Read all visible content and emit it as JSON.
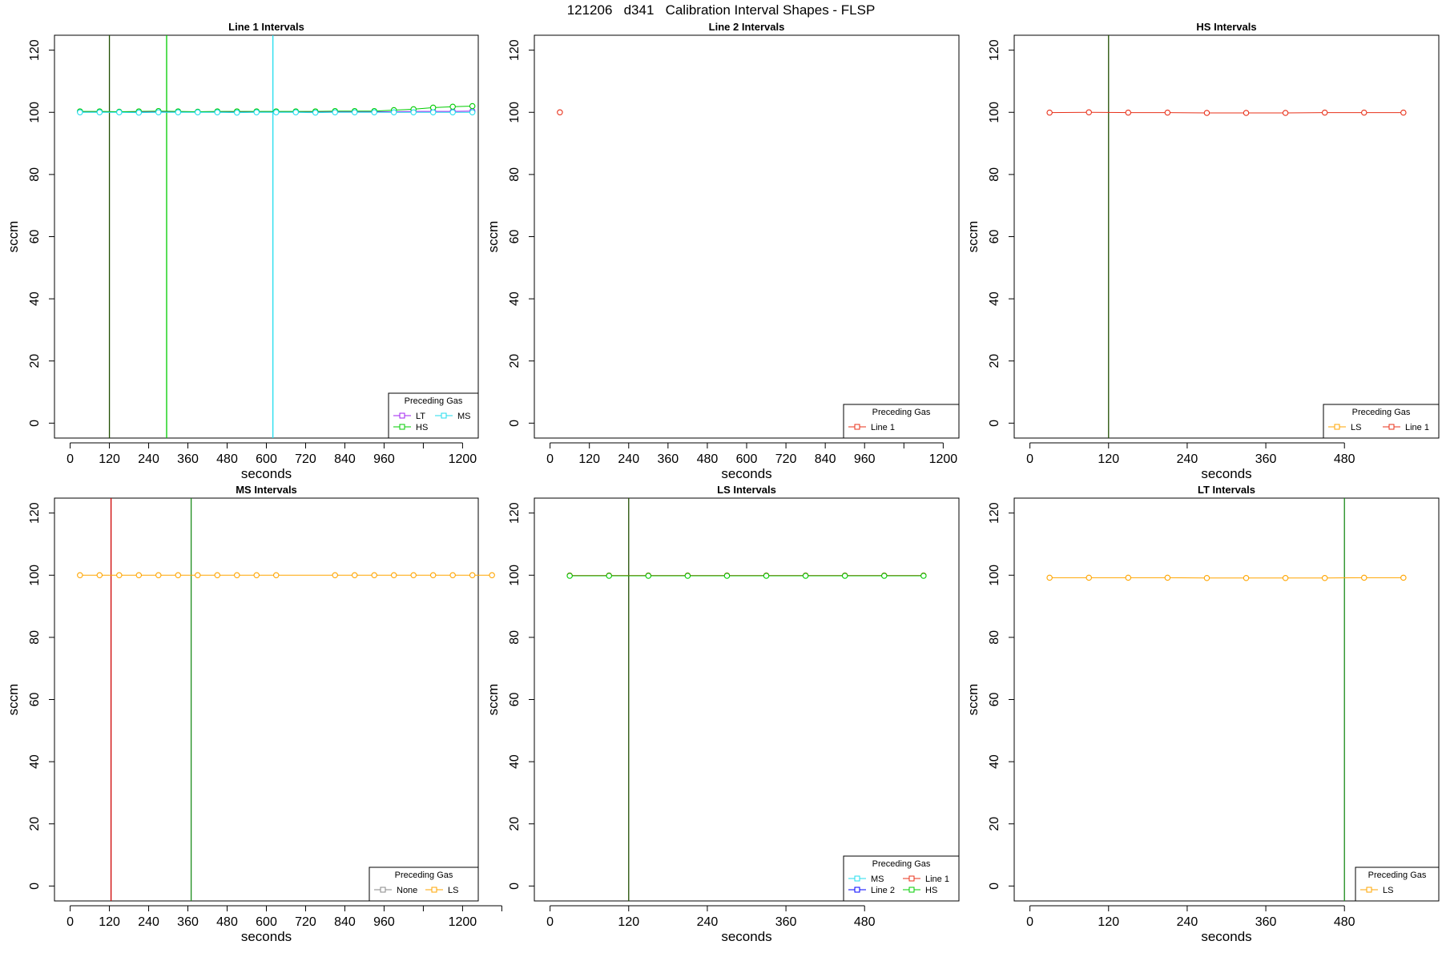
{
  "figure": {
    "title": "121206   d341   Calibration Interval Shapes - FLSP",
    "axis_color": "#000000"
  },
  "colors": {
    "LT": "#A020F0",
    "HS": "#00CC00",
    "MS": "#22DDEE",
    "Line 1": "#E8311A",
    "Line 2": "#0000FF",
    "LS": "#FFA500",
    "None": "#888888",
    "vline_dark": "#1F4D00",
    "vline_green": "#00CC00",
    "vline_cyan": "#22DDEE",
    "vline_red": "#CC0000",
    "vline_dkgreen": "#1A8A1A"
  },
  "chart_data": [
    {
      "type": "line",
      "title": "Line 1 Intervals",
      "xlabel": "seconds",
      "ylabel": "sccm",
      "xlim": [
        0,
        1200
      ],
      "ylim": [
        0,
        120
      ],
      "xticks": [
        0,
        120,
        240,
        360,
        480,
        600,
        720,
        840,
        960,
        1080,
        1200
      ],
      "xticklabels": [
        "0",
        "120",
        "240",
        "360",
        "480",
        "600",
        "720",
        "840",
        "960",
        "",
        "1200"
      ],
      "yticks": [
        0,
        20,
        40,
        60,
        80,
        100,
        120
      ],
      "legend": {
        "title": "Preceding Gas",
        "entries": [
          "LT",
          "MS",
          "HS"
        ],
        "position": "bottom-right"
      },
      "vlines": [
        {
          "x": 120,
          "color": "vline_dark"
        },
        {
          "x": 295,
          "color": "vline_green"
        },
        {
          "x": 620,
          "color": "vline_cyan"
        }
      ],
      "series": [
        {
          "name": "LT",
          "x": [
            30,
            90,
            150,
            210,
            270,
            330,
            390,
            450,
            510,
            570,
            630,
            690,
            750,
            810,
            870,
            930,
            990,
            1050,
            1110,
            1170,
            1230
          ],
          "y": [
            100.2,
            100.2,
            100.1,
            100.1,
            100.2,
            100.2,
            100.1,
            100.1,
            100.2,
            100.2,
            100.1,
            100.1,
            100.1,
            100.2,
            100.2,
            100.2,
            100.2,
            100.3,
            100.3,
            100.3,
            100.4
          ]
        },
        {
          "name": "HS",
          "x": [
            30,
            90,
            150,
            210,
            270,
            330,
            390,
            450,
            510,
            570,
            630,
            690,
            750,
            810,
            870,
            930,
            990,
            1050,
            1110,
            1170,
            1230
          ],
          "y": [
            100.3,
            100.3,
            100.2,
            100.3,
            100.4,
            100.3,
            100.2,
            100.3,
            100.3,
            100.3,
            100.3,
            100.3,
            100.3,
            100.4,
            100.4,
            100.4,
            100.7,
            101.0,
            101.5,
            101.8,
            102.0
          ]
        },
        {
          "name": "MS",
          "x": [
            30,
            90,
            150,
            210,
            270,
            330,
            390,
            450,
            510,
            570,
            630,
            690,
            750,
            810,
            870,
            930,
            990,
            1050,
            1110,
            1170,
            1230
          ],
          "y": [
            100.0,
            100.0,
            100.0,
            99.9,
            100.0,
            100.0,
            100.0,
            100.0,
            99.9,
            100.0,
            100.0,
            100.0,
            99.9,
            100.0,
            100.0,
            100.0,
            100.0,
            100.0,
            100.0,
            100.0,
            100.0
          ]
        }
      ]
    },
    {
      "type": "line",
      "title": "Line 2 Intervals",
      "xlabel": "seconds",
      "ylabel": "sccm",
      "xlim": [
        0,
        1200
      ],
      "ylim": [
        0,
        120
      ],
      "xticks": [
        0,
        120,
        240,
        360,
        480,
        600,
        720,
        840,
        960,
        1080,
        1200
      ],
      "xticklabels": [
        "0",
        "120",
        "240",
        "360",
        "480",
        "600",
        "720",
        "840",
        "960",
        "",
        "1200"
      ],
      "yticks": [
        0,
        20,
        40,
        60,
        80,
        100,
        120
      ],
      "legend": {
        "title": "Preceding Gas",
        "entries": [
          "Line 1"
        ],
        "position": "bottom-right"
      },
      "vlines": [],
      "series": [
        {
          "name": "Line 1",
          "x": [
            30
          ],
          "y": [
            100.0
          ]
        }
      ]
    },
    {
      "type": "line",
      "title": "HS Intervals",
      "xlabel": "seconds",
      "ylabel": "sccm",
      "xlim": [
        0,
        600
      ],
      "ylim": [
        0,
        120
      ],
      "xticks": [
        0,
        120,
        240,
        360,
        480
      ],
      "xticklabels": [
        "0",
        "120",
        "240",
        "360",
        "480"
      ],
      "yticks": [
        0,
        20,
        40,
        60,
        80,
        100,
        120
      ],
      "legend": {
        "title": "Preceding Gas",
        "entries": [
          "LS",
          "Line 1"
        ],
        "position": "bottom-right"
      },
      "vlines": [
        {
          "x": 120,
          "color": "vline_dark"
        }
      ],
      "series": [
        {
          "name": "Line 1",
          "x": [
            30,
            90,
            150,
            210,
            270,
            330,
            390,
            450,
            510,
            570
          ],
          "y": [
            99.9,
            100.0,
            99.9,
            99.9,
            99.8,
            99.8,
            99.8,
            99.9,
            99.9,
            99.9
          ]
        }
      ]
    },
    {
      "type": "line",
      "title": "MS Intervals",
      "xlabel": "seconds",
      "ylabel": "sccm",
      "xlim": [
        0,
        1200
      ],
      "ylim": [
        0,
        120
      ],
      "xticks": [
        0,
        120,
        240,
        360,
        480,
        600,
        720,
        840,
        960,
        1080,
        1200,
        1320
      ],
      "xticklabels": [
        "0",
        "120",
        "240",
        "360",
        "480",
        "600",
        "720",
        "840",
        "960",
        "",
        "1200",
        ""
      ],
      "yticks": [
        0,
        20,
        40,
        60,
        80,
        100,
        120
      ],
      "legend": {
        "title": "Preceding Gas",
        "entries": [
          "None",
          "LS"
        ],
        "position": "bottom-right"
      },
      "vlines": [
        {
          "x": 125,
          "color": "vline_red"
        },
        {
          "x": 370,
          "color": "vline_dkgreen"
        }
      ],
      "series": [
        {
          "name": "LS",
          "x": [
            30,
            90,
            150,
            210,
            270,
            330,
            390,
            450,
            510,
            570,
            630,
            810,
            870,
            930,
            990,
            1050,
            1110,
            1170,
            1230,
            1290
          ],
          "y": [
            100.0,
            100.0,
            100.0,
            100.0,
            100.0,
            100.0,
            100.0,
            100.0,
            100.0,
            100.0,
            100.0,
            100.0,
            100.0,
            100.0,
            100.0,
            100.0,
            100.0,
            100.0,
            100.0,
            100.0
          ]
        }
      ]
    },
    {
      "type": "line",
      "title": "LS Intervals",
      "xlabel": "seconds",
      "ylabel": "sccm",
      "xlim": [
        0,
        600
      ],
      "ylim": [
        0,
        120
      ],
      "xticks": [
        0,
        120,
        240,
        360,
        480
      ],
      "xticklabels": [
        "0",
        "120",
        "240",
        "360",
        "480"
      ],
      "yticks": [
        0,
        20,
        40,
        60,
        80,
        100,
        120
      ],
      "legend": {
        "title": "Preceding Gas",
        "entries": [
          "MS",
          "Line 1",
          "Line 2",
          "HS"
        ],
        "position": "bottom-right"
      },
      "vlines": [
        {
          "x": 120,
          "color": "vline_dark"
        }
      ],
      "series": [
        {
          "name": "Line 1",
          "x": [
            30,
            90,
            150,
            210,
            270,
            330,
            390,
            450,
            510,
            570
          ],
          "y": [
            99.9,
            99.9,
            99.9,
            99.9,
            99.9,
            99.9,
            99.9,
            99.9,
            99.9,
            99.9
          ]
        },
        {
          "name": "HS",
          "x": [
            30,
            90,
            150,
            210,
            270,
            330,
            390,
            450,
            510,
            570
          ],
          "y": [
            99.8,
            99.8,
            99.8,
            99.8,
            99.8,
            99.8,
            99.8,
            99.8,
            99.8,
            99.8
          ]
        }
      ]
    },
    {
      "type": "line",
      "title": "LT Intervals",
      "xlabel": "seconds",
      "ylabel": "sccm",
      "xlim": [
        0,
        600
      ],
      "ylim": [
        0,
        120
      ],
      "xticks": [
        0,
        120,
        240,
        360,
        480
      ],
      "xticklabels": [
        "0",
        "120",
        "240",
        "360",
        "480"
      ],
      "yticks": [
        0,
        20,
        40,
        60,
        80,
        100,
        120
      ],
      "legend": {
        "title": "Preceding Gas",
        "entries": [
          "LS"
        ],
        "position": "bottom-right"
      },
      "vlines": [
        {
          "x": 480,
          "color": "vline_dkgreen"
        }
      ],
      "series": [
        {
          "name": "LS",
          "x": [
            30,
            90,
            150,
            210,
            270,
            330,
            390,
            450,
            510,
            570
          ],
          "y": [
            99.2,
            99.2,
            99.2,
            99.2,
            99.1,
            99.1,
            99.1,
            99.1,
            99.2,
            99.2
          ]
        }
      ]
    }
  ]
}
